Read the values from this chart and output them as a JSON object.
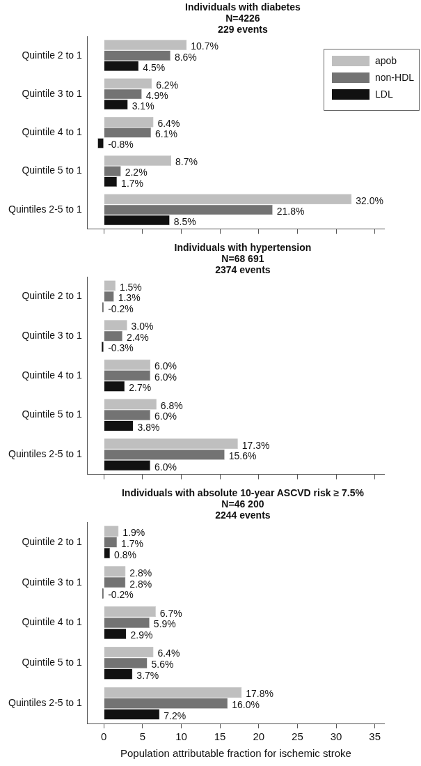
{
  "chart_data": [
    {
      "type": "bar",
      "orientation": "horizontal",
      "title": "Individuals with diabetes",
      "subtitle": "N=4226\n229 events",
      "categories": [
        "Quintile 2 to 1",
        "Quintile 3 to 1",
        "Quintile 4 to 1",
        "Quintile 5 to 1",
        "Quintiles 2-5 to 1"
      ],
      "series": [
        {
          "name": "apob",
          "color": "#bfbfbf",
          "values": [
            10.7,
            6.2,
            6.4,
            8.7,
            32.0
          ],
          "value_labels": [
            "10.7%",
            "6.2%",
            "6.4%",
            "8.7%",
            "32.0%"
          ]
        },
        {
          "name": "non-HDL",
          "color": "#737373",
          "values": [
            8.6,
            4.9,
            6.1,
            2.2,
            21.8
          ],
          "value_labels": [
            "8.6%",
            "4.9%",
            "6.1%",
            "2.2%",
            "21.8%"
          ]
        },
        {
          "name": "LDL",
          "color": "#111111",
          "values": [
            4.5,
            3.1,
            -0.8,
            1.7,
            8.5
          ],
          "value_labels": [
            "4.5%",
            "3.1%",
            "-0.8%",
            "1.7%",
            "8.5%"
          ]
        }
      ],
      "xlim": [
        -2.1,
        36.2
      ],
      "xticks": [
        0,
        5,
        10,
        15,
        20,
        25,
        30,
        35
      ],
      "tick_labels": "y",
      "legend": "top right",
      "grid": false
    },
    {
      "type": "bar",
      "orientation": "horizontal",
      "title": "Individuals with hypertension",
      "subtitle": "N=68 691\n2374 events",
      "categories": [
        "Quintile 2 to 1",
        "Quintile 3 to 1",
        "Quintile 4 to 1",
        "Quintile 5 to 1",
        "Quintiles 2-5 to 1"
      ],
      "series": [
        {
          "color": "#bfbfbf",
          "values": [
            1.5,
            3.0,
            6.0,
            6.8,
            17.3
          ],
          "value_labels": [
            "1.5%",
            "3.0%",
            "6.0%",
            "6.8%",
            "17.3%"
          ]
        },
        {
          "color": "#737373",
          "values": [
            1.3,
            2.4,
            6.0,
            6.0,
            15.6
          ],
          "value_labels": [
            "1.3%",
            "2.4%",
            "6.0%",
            "6.0%",
            "15.6%"
          ]
        },
        {
          "color": "#111111",
          "values": [
            -0.2,
            -0.3,
            2.7,
            3.8,
            6.0
          ],
          "value_labels": [
            "-0.2%",
            "-0.3%",
            "2.7%",
            "3.8%",
            "6.0%"
          ]
        }
      ],
      "xlim": [
        -2.1,
        36.2
      ],
      "xticks": [
        0,
        5,
        10,
        15,
        20,
        25,
        30,
        35
      ],
      "tick_labels": "y",
      "grid": false
    },
    {
      "type": "bar",
      "orientation": "horizontal",
      "title": "Individuals with absolute 10-year ASCVD risk ≥ 7.5%",
      "subtitle": "N=46 200\n2244 events",
      "categories": [
        "Quintile 2 to 1",
        "Quintile 3 to 1",
        "Quintile 4 to 1",
        "Quintile 5 to 1",
        "Quintiles 2-5 to 1"
      ],
      "series": [
        {
          "color": "#bfbfbf",
          "values": [
            1.9,
            2.8,
            6.7,
            6.4,
            17.8
          ],
          "value_labels": [
            "1.9%",
            "2.8%",
            "6.7%",
            "6.4%",
            "17.8%"
          ]
        },
        {
          "color": "#737373",
          "values": [
            1.7,
            2.8,
            5.9,
            5.6,
            16.0
          ],
          "value_labels": [
            "1.7%",
            "2.8%",
            "5.9%",
            "5.6%",
            "16.0%"
          ]
        },
        {
          "color": "#111111",
          "values": [
            0.8,
            -0.2,
            2.9,
            3.7,
            7.2
          ],
          "value_labels": [
            "0.8%",
            "-0.2%",
            "2.9%",
            "3.7%",
            "7.2%"
          ]
        }
      ],
      "xlim": [
        -2.1,
        36.2
      ],
      "xticks": [
        0,
        5,
        10,
        15,
        20,
        25,
        30,
        35
      ],
      "xlabel": "Population attributable fraction for ischemic stroke",
      "grid": false
    }
  ]
}
